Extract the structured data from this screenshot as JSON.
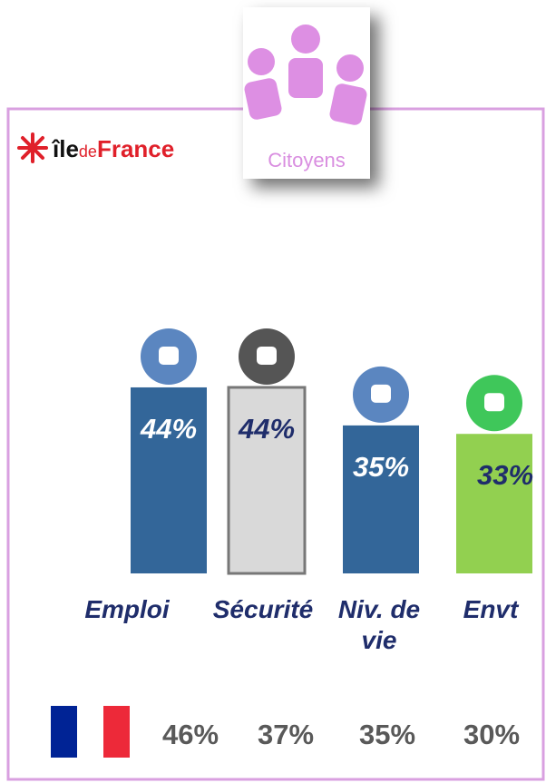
{
  "chart_data": {
    "type": "bar",
    "badge": "Citoyens",
    "logo": [
      "île",
      "de",
      "France"
    ],
    "categories": [
      "Emploi",
      "Sécurité",
      "Niv. de vie",
      "Envt"
    ],
    "values": [
      44,
      44,
      35,
      33
    ],
    "value_labels": [
      "44%",
      "44%",
      "35%",
      "33%"
    ],
    "colors": [
      "#336699",
      "#d9d9d9",
      "#336699",
      "#92d050"
    ],
    "national": {
      "values": [
        46,
        37,
        35,
        30
      ],
      "value_labels": [
        "46%",
        "37%",
        "35%",
        "30%"
      ]
    }
  }
}
